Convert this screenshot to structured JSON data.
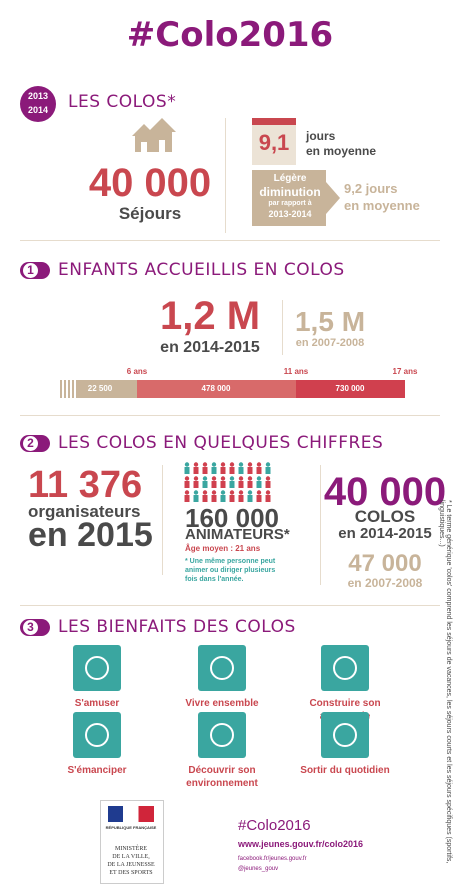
{
  "title": "#Colo2016",
  "badge": [
    "2013",
    "2014"
  ],
  "colos": {
    "heading": "LES COLOS*",
    "sejours_value": "40 000",
    "sejours_label": "Séjours",
    "duree_value": "9,1",
    "duree_label": [
      "jours",
      "en moyenne"
    ],
    "trend": [
      "Légère",
      "diminution",
      "par rapport à",
      "2013-2014"
    ],
    "previous": [
      "9,2 jours",
      "en moyenne"
    ]
  },
  "section1": {
    "number": "1",
    "heading": "ENFANTS ACCUEILLIS EN COLOS",
    "current_value": "1,2 M",
    "current_period": "en 2014-2015",
    "previous_value": "1,5 M",
    "previous_period": "en 2007-2008",
    "ages": [
      "6 ans",
      "11 ans",
      "17 ans"
    ],
    "segments": [
      "22 500",
      "478 000",
      "730 000"
    ]
  },
  "section2": {
    "number": "2",
    "heading": "LES COLOS EN QUELQUES CHIFFRES",
    "organisateurs": {
      "value": "11 376",
      "label": "organisateurs",
      "period": "en 2015"
    },
    "animateurs": {
      "value": "160 000",
      "label": "ANIMATEURS*",
      "age": "Âge moyen : 21 ans",
      "note": "* Une même personne peut animer ou diriger plusieurs fois dans l'année."
    },
    "colos": {
      "value": "40 000",
      "label": "COLOS",
      "period": "en 2014-2015",
      "previous_value": "47 000",
      "previous_period": "en 2007-2008"
    }
  },
  "section3": {
    "number": "3",
    "heading": "LES BIENFAITS DES COLOS",
    "items": [
      "S'amuser",
      "Vivre ensemble",
      "Construire son autonomie",
      "S'émanciper",
      "Découvrir son environnement",
      "Sortir du quotidien"
    ]
  },
  "footer": {
    "ministry": [
      "MINISTÈRE",
      "DE LA VILLE,",
      "DE LA JEUNESSE",
      "ET DES SPORTS"
    ],
    "republic": "RÉPUBLIQUE FRANÇAISE",
    "hashtag": "#Colo2016",
    "url": "www.jeunes.gouv.fr/colo2016",
    "facebook": "facebook.fr/jeunes.gouv.fr",
    "twitter": "@jeunes_gouv",
    "side_note": "* Le terme générique 'colos' comprend les séjours de vacances, les séjours courts et les séjours spécifiques (sportifs, linguistiques...)"
  }
}
